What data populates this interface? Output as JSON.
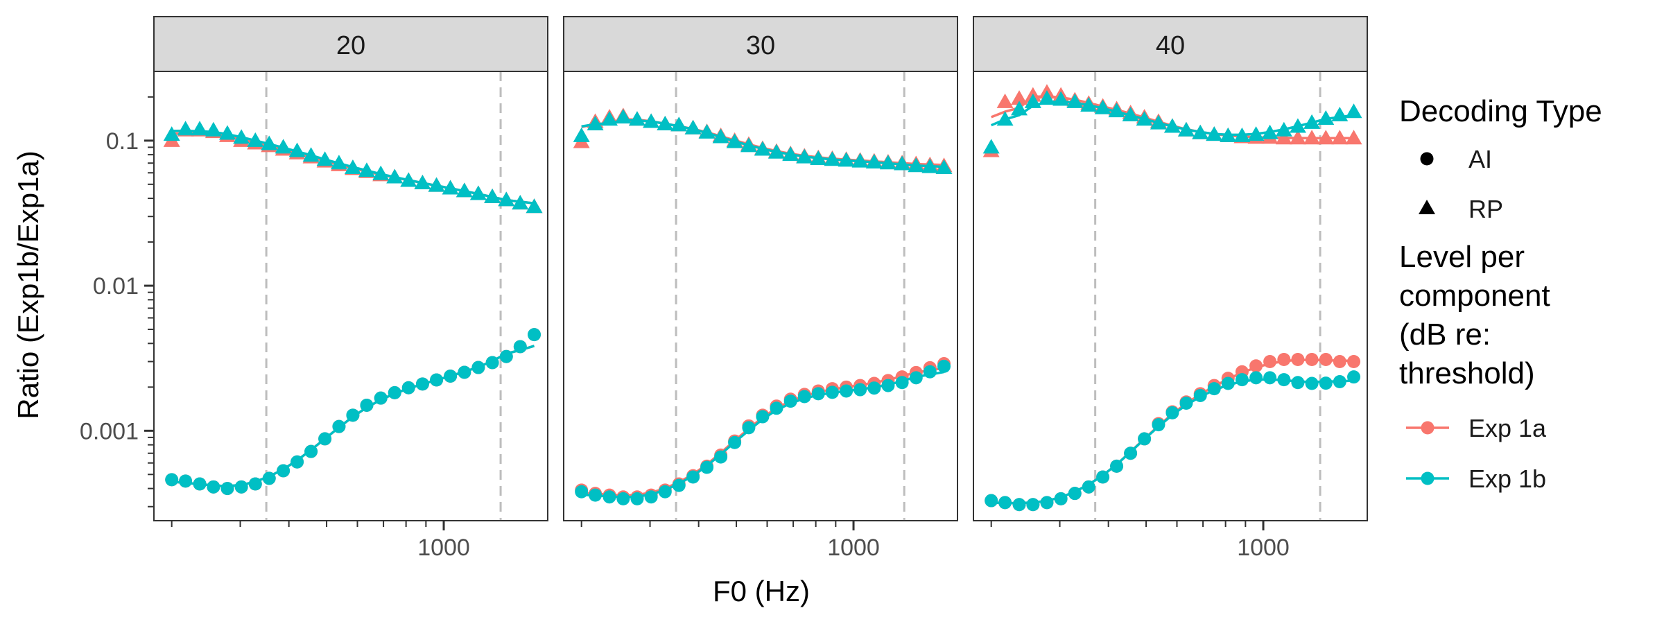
{
  "chart_data": {
    "type": "scatter",
    "x_scale": "log",
    "y_scale": "log",
    "xlabel": "F0 (Hz)",
    "ylabel": "Ratio (Exp1b/Exp1a)",
    "xlim": [
      180,
      1850
    ],
    "ylim": [
      0.00024,
      0.3
    ],
    "x_ticks": [
      1000
    ],
    "x_tick_labels": [
      "1000"
    ],
    "y_ticks": [
      0.001,
      0.01,
      0.1
    ],
    "y_tick_labels": [
      "0.001",
      "0.01",
      "0.1"
    ],
    "grid": false,
    "legend_position": "right",
    "legends": [
      {
        "title": "Decoding Type",
        "entries": [
          {
            "label": "AI",
            "shape": "circle"
          },
          {
            "label": "RP",
            "shape": "triangle"
          }
        ]
      },
      {
        "title": "Level per component (dB re: threshold)",
        "title_lines": [
          "Level per",
          "component",
          "(dB re:",
          "threshold)"
        ],
        "entries": [
          {
            "label": "Exp 1a",
            "color": "#F8766D"
          },
          {
            "label": "Exp 1b",
            "color": "#00BFC4"
          }
        ]
      }
    ],
    "colors": {
      "Exp 1a": "#F8766D",
      "Exp 1b": "#00BFC4"
    },
    "x": [
      200,
      217,
      236,
      256,
      278,
      302,
      328,
      356,
      387,
      420,
      456,
      495,
      538,
      584,
      634,
      689,
      748,
      812,
      882,
      958,
      1040,
      1130,
      1227,
      1333,
      1448,
      1572,
      1708
    ],
    "panels": [
      {
        "label": "20",
        "vlines": [
          350,
          1400
        ],
        "series": [
          {
            "name": "Exp 1a",
            "decoding": "RP",
            "values": [
              0.1,
              0.118,
              0.118,
              0.115,
              0.108,
              0.1,
              0.096,
              0.092,
              0.087,
              0.082,
              0.077,
              0.072,
              0.068,
              0.064,
              0.061,
              0.058,
              0.056,
              0.053,
              0.051,
              0.049,
              0.047,
              0.045,
              0.043,
              0.041,
              0.039,
              0.037,
              0.035
            ]
          },
          {
            "name": "Exp 1b",
            "decoding": "RP",
            "values": [
              0.11,
              0.12,
              0.12,
              0.118,
              0.112,
              0.105,
              0.1,
              0.095,
              0.09,
              0.085,
              0.079,
              0.074,
              0.07,
              0.065,
              0.062,
              0.059,
              0.056,
              0.053,
              0.051,
              0.049,
              0.047,
              0.045,
              0.043,
              0.041,
              0.039,
              0.037,
              0.035
            ]
          },
          {
            "name": "Exp 1a",
            "decoding": "AI",
            "values": [
              0.00046,
              0.00045,
              0.00043,
              0.00041,
              0.0004,
              0.00041,
              0.00043,
              0.00047,
              0.00053,
              0.00061,
              0.00072,
              0.00088,
              0.00107,
              0.00128,
              0.0015,
              0.00168,
              0.00183,
              0.00198,
              0.0021,
              0.00224,
              0.00238,
              0.00253,
              0.00273,
              0.00295,
              0.00325,
              0.0038,
              0.0046
            ]
          },
          {
            "name": "Exp 1b",
            "decoding": "AI",
            "values": [
              0.00046,
              0.00045,
              0.00043,
              0.00041,
              0.0004,
              0.00041,
              0.00043,
              0.00047,
              0.00053,
              0.00061,
              0.00072,
              0.00088,
              0.00107,
              0.00128,
              0.0015,
              0.00168,
              0.00183,
              0.00198,
              0.0021,
              0.00224,
              0.00238,
              0.00253,
              0.00273,
              0.00295,
              0.00325,
              0.0038,
              0.0046
            ]
          }
        ]
      },
      {
        "label": "30",
        "vlines": [
          350,
          1350
        ],
        "series": [
          {
            "name": "Exp 1a",
            "decoding": "RP",
            "values": [
              0.098,
              0.135,
              0.145,
              0.148,
              0.14,
              0.135,
              0.13,
              0.128,
              0.122,
              0.115,
              0.108,
              0.1,
              0.094,
              0.088,
              0.084,
              0.081,
              0.078,
              0.076,
              0.075,
              0.074,
              0.073,
              0.072,
              0.071,
              0.07,
              0.069,
              0.068,
              0.067
            ]
          },
          {
            "name": "Exp 1b",
            "decoding": "RP",
            "values": [
              0.108,
              0.13,
              0.14,
              0.145,
              0.14,
              0.135,
              0.13,
              0.128,
              0.122,
              0.114,
              0.106,
              0.098,
              0.092,
              0.087,
              0.083,
              0.08,
              0.077,
              0.075,
              0.074,
              0.073,
              0.072,
              0.071,
              0.07,
              0.069,
              0.067,
              0.066,
              0.065
            ]
          },
          {
            "name": "Exp 1a",
            "decoding": "AI",
            "values": [
              0.00039,
              0.00037,
              0.00036,
              0.00035,
              0.00035,
              0.00036,
              0.00039,
              0.00043,
              0.00049,
              0.00057,
              0.00068,
              0.00085,
              0.00108,
              0.00128,
              0.00148,
              0.00165,
              0.00178,
              0.00188,
              0.00195,
              0.002,
              0.00205,
              0.00212,
              0.00222,
              0.00235,
              0.00252,
              0.00272,
              0.0029
            ]
          },
          {
            "name": "Exp 1b",
            "decoding": "AI",
            "values": [
              0.00038,
              0.00036,
              0.00035,
              0.00034,
              0.00034,
              0.00035,
              0.00038,
              0.00042,
              0.00048,
              0.00056,
              0.00066,
              0.00083,
              0.00105,
              0.00125,
              0.00143,
              0.0016,
              0.00172,
              0.0018,
              0.00184,
              0.00188,
              0.00192,
              0.00197,
              0.00205,
              0.00215,
              0.00232,
              0.00255,
              0.00278
            ]
          }
        ]
      },
      {
        "label": "40",
        "vlines": [
          370,
          1400
        ],
        "series": [
          {
            "name": "Exp 1a",
            "decoding": "RP",
            "values": [
              0.085,
              0.185,
              0.195,
              0.205,
              0.215,
              0.205,
              0.19,
              0.18,
              0.172,
              0.165,
              0.155,
              0.145,
              0.135,
              0.125,
              0.118,
              0.113,
              0.11,
              0.108,
              0.106,
              0.105,
              0.105,
              0.104,
              0.104,
              0.104,
              0.104,
              0.104,
              0.104
            ]
          },
          {
            "name": "Exp 1b",
            "decoding": "RP",
            "values": [
              0.09,
              0.14,
              0.165,
              0.185,
              0.195,
              0.192,
              0.185,
              0.175,
              0.168,
              0.16,
              0.15,
              0.14,
              0.132,
              0.125,
              0.118,
              0.113,
              0.11,
              0.108,
              0.108,
              0.11,
              0.113,
              0.118,
              0.125,
              0.133,
              0.142,
              0.15,
              0.158
            ]
          },
          {
            "name": "Exp 1a",
            "decoding": "AI",
            "values": [
              0.00033,
              0.00032,
              0.00031,
              0.00031,
              0.00032,
              0.00034,
              0.00037,
              0.00041,
              0.00048,
              0.00057,
              0.0007,
              0.00088,
              0.00112,
              0.00135,
              0.00158,
              0.0018,
              0.00205,
              0.0023,
              0.00255,
              0.0028,
              0.003,
              0.0031,
              0.0031,
              0.0031,
              0.0031,
              0.003,
              0.003
            ]
          },
          {
            "name": "Exp 1b",
            "decoding": "AI",
            "values": [
              0.00033,
              0.00032,
              0.00031,
              0.00031,
              0.00032,
              0.00034,
              0.00037,
              0.00041,
              0.00048,
              0.00057,
              0.0007,
              0.00088,
              0.0011,
              0.00133,
              0.00155,
              0.00175,
              0.00195,
              0.00212,
              0.00225,
              0.00232,
              0.00232,
              0.00225,
              0.00215,
              0.00212,
              0.00213,
              0.00218,
              0.00235
            ]
          }
        ]
      }
    ]
  }
}
